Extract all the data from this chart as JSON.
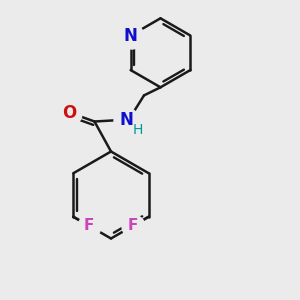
{
  "background_color": "#ebebeb",
  "bond_color": "#1a1a1a",
  "atom_colors": {
    "N_amide": "#1010cc",
    "N_pyridine": "#1010cc",
    "O": "#cc1010",
    "F": "#cc44bb",
    "H": "#009999",
    "C": "#1a1a1a"
  },
  "figsize": [
    3.0,
    3.0
  ],
  "dpi": 100
}
